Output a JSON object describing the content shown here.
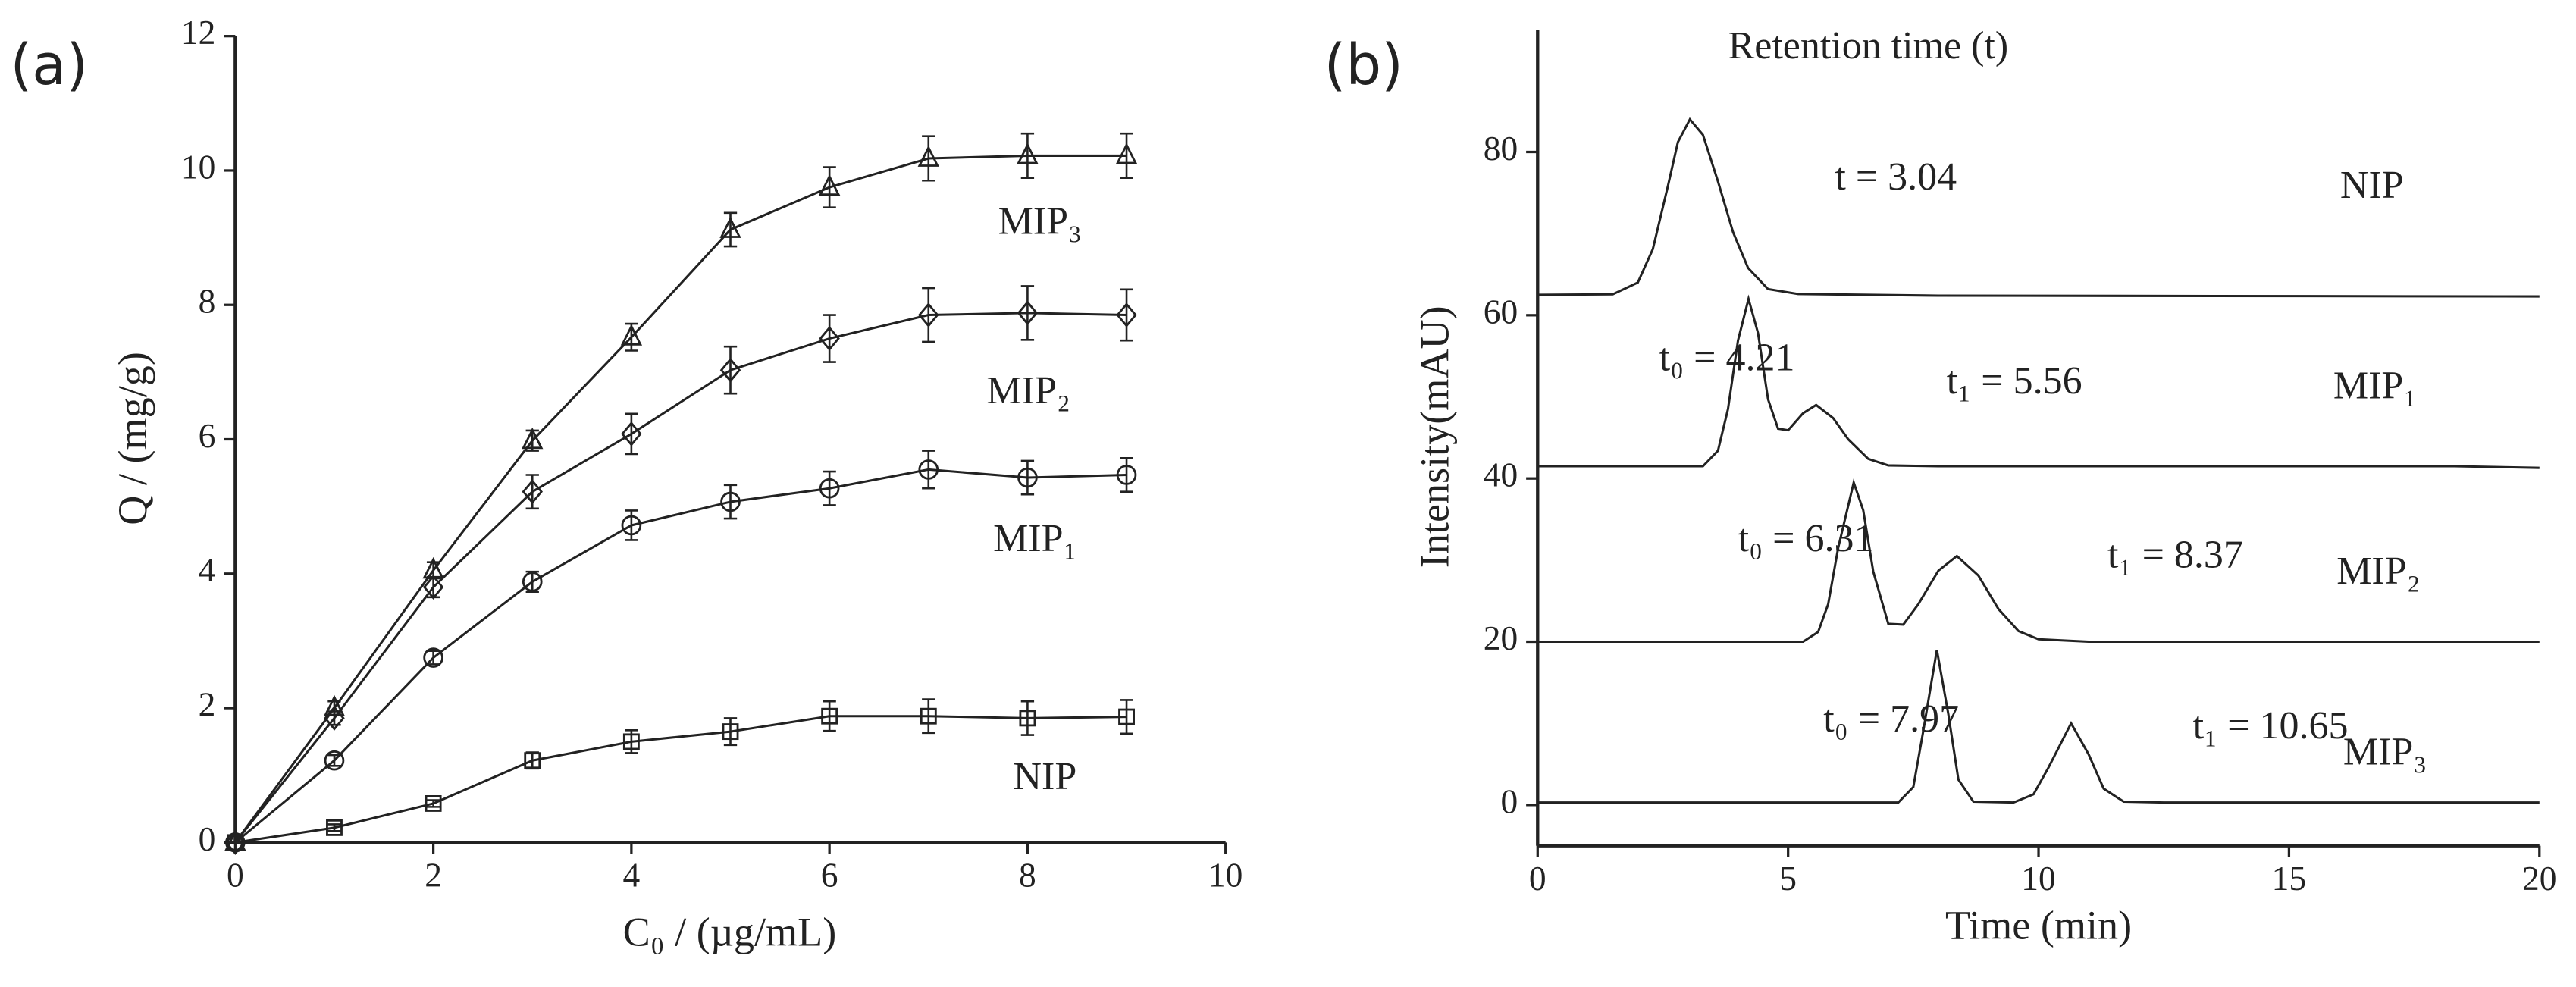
{
  "chart_data": [
    {
      "type": "line",
      "panel_label": "(a)",
      "x_label": "C₀ / (µg/mL)",
      "y_label": "Q / (mg/g)",
      "x": [
        0,
        1,
        2,
        3,
        4,
        5,
        6,
        7,
        8,
        9
      ],
      "xlim": [
        0,
        10
      ],
      "xticks": [
        0,
        2,
        4,
        6,
        8,
        10
      ],
      "ylim": [
        0,
        12
      ],
      "yticks": [
        0,
        2,
        4,
        6,
        8,
        10,
        12
      ],
      "series": [
        {
          "name": "NIP",
          "color": "#222222",
          "marker": "square",
          "values": [
            0,
            0.22,
            0.58,
            1.22,
            1.5,
            1.65,
            1.88,
            1.88,
            1.85,
            1.87
          ],
          "errors": [
            0,
            0.05,
            0.05,
            0.12,
            0.17,
            0.2,
            0.22,
            0.25,
            0.25,
            0.25
          ]
        },
        {
          "name": "MIP₁",
          "color": "#222222",
          "marker": "circle",
          "values": [
            0,
            1.22,
            2.75,
            3.88,
            4.72,
            5.07,
            5.27,
            5.55,
            5.43,
            5.47
          ],
          "errors": [
            0,
            0.08,
            0.1,
            0.15,
            0.22,
            0.25,
            0.25,
            0.28,
            0.25,
            0.25
          ]
        },
        {
          "name": "MIP₂",
          "color": "#222222",
          "marker": "diamond",
          "values": [
            0,
            1.85,
            3.8,
            5.22,
            6.08,
            7.03,
            7.5,
            7.85,
            7.88,
            7.85
          ],
          "errors": [
            0,
            0.1,
            0.15,
            0.25,
            0.3,
            0.35,
            0.35,
            0.4,
            0.4,
            0.38
          ]
        },
        {
          "name": "MIP₃",
          "color": "#222222",
          "marker": "triangle",
          "values": [
            0,
            2.0,
            4.05,
            5.98,
            7.52,
            9.12,
            9.75,
            10.18,
            10.22,
            10.22
          ],
          "errors": [
            0,
            0.1,
            0.12,
            0.15,
            0.2,
            0.25,
            0.3,
            0.33,
            0.33,
            0.33
          ]
        }
      ]
    },
    {
      "type": "line",
      "panel_label": "(b)",
      "title": "Retention time (t)",
      "x_label": "Time (min)",
      "y_label": "Intensity(mAU)",
      "xlim": [
        0,
        20
      ],
      "xticks": [
        0,
        5,
        10,
        15,
        20
      ],
      "ylim": [
        -5,
        95
      ],
      "yticks": [
        0,
        20,
        40,
        60,
        80
      ],
      "series": [
        {
          "name": "NIP",
          "color": "#222222",
          "x": [
            0,
            1.5,
            2.0,
            2.3,
            2.6,
            2.8,
            3.04,
            3.3,
            3.6,
            3.9,
            4.2,
            4.6,
            5.2,
            8,
            20
          ],
          "values": [
            62.5,
            62.56,
            64.0,
            68.1,
            75.8,
            81.2,
            84.0,
            82.1,
            76.4,
            70.2,
            65.8,
            63.2,
            62.6,
            62.4,
            62.3
          ]
        },
        {
          "name": "MIP₁",
          "color": "#222222",
          "x": [
            0,
            3.3,
            3.6,
            3.8,
            4.0,
            4.21,
            4.4,
            4.6,
            4.8,
            5.0,
            5.3,
            5.56,
            5.9,
            6.2,
            6.6,
            7.0,
            8,
            18.3,
            20
          ],
          "values": [
            41.5,
            41.5,
            43.4,
            48.5,
            56.9,
            62.0,
            57.8,
            49.7,
            46.1,
            45.9,
            48.0,
            49.0,
            47.4,
            44.8,
            42.4,
            41.6,
            41.5,
            41.5,
            41.3
          ]
        },
        {
          "name": "MIP₂",
          "color": "#222222",
          "x": [
            0,
            5.3,
            5.6,
            5.8,
            6.0,
            6.31,
            6.5,
            6.7,
            7.0,
            7.3,
            7.6,
            8.0,
            8.37,
            8.8,
            9.2,
            9.6,
            10.0,
            11,
            20
          ],
          "values": [
            20,
            20,
            21.2,
            24.6,
            31.5,
            39.5,
            36.1,
            28.6,
            22.2,
            22.1,
            24.6,
            28.7,
            30.5,
            28.1,
            24.0,
            21.3,
            20.3,
            20,
            20
          ]
        },
        {
          "name": "MIP₃",
          "color": "#222222",
          "x": [
            0,
            7.2,
            7.5,
            7.7,
            7.97,
            8.2,
            8.4,
            8.7,
            9.5,
            9.9,
            10.2,
            10.65,
            11.0,
            11.3,
            11.7,
            12.5,
            20
          ],
          "values": [
            0.3,
            0.3,
            2.2,
            9.1,
            19.0,
            11.1,
            3.1,
            0.4,
            0.3,
            1.3,
            4.6,
            10.0,
            6.2,
            2.0,
            0.4,
            0.3,
            0.3
          ]
        }
      ],
      "annotations": [
        "t = 3.04",
        "t₀ = 4.21",
        "t₁ = 5.56",
        "t₀ = 6.31",
        "t₁ = 8.37",
        "t₀ = 7.97",
        "t₁ = 10.65"
      ]
    }
  ]
}
